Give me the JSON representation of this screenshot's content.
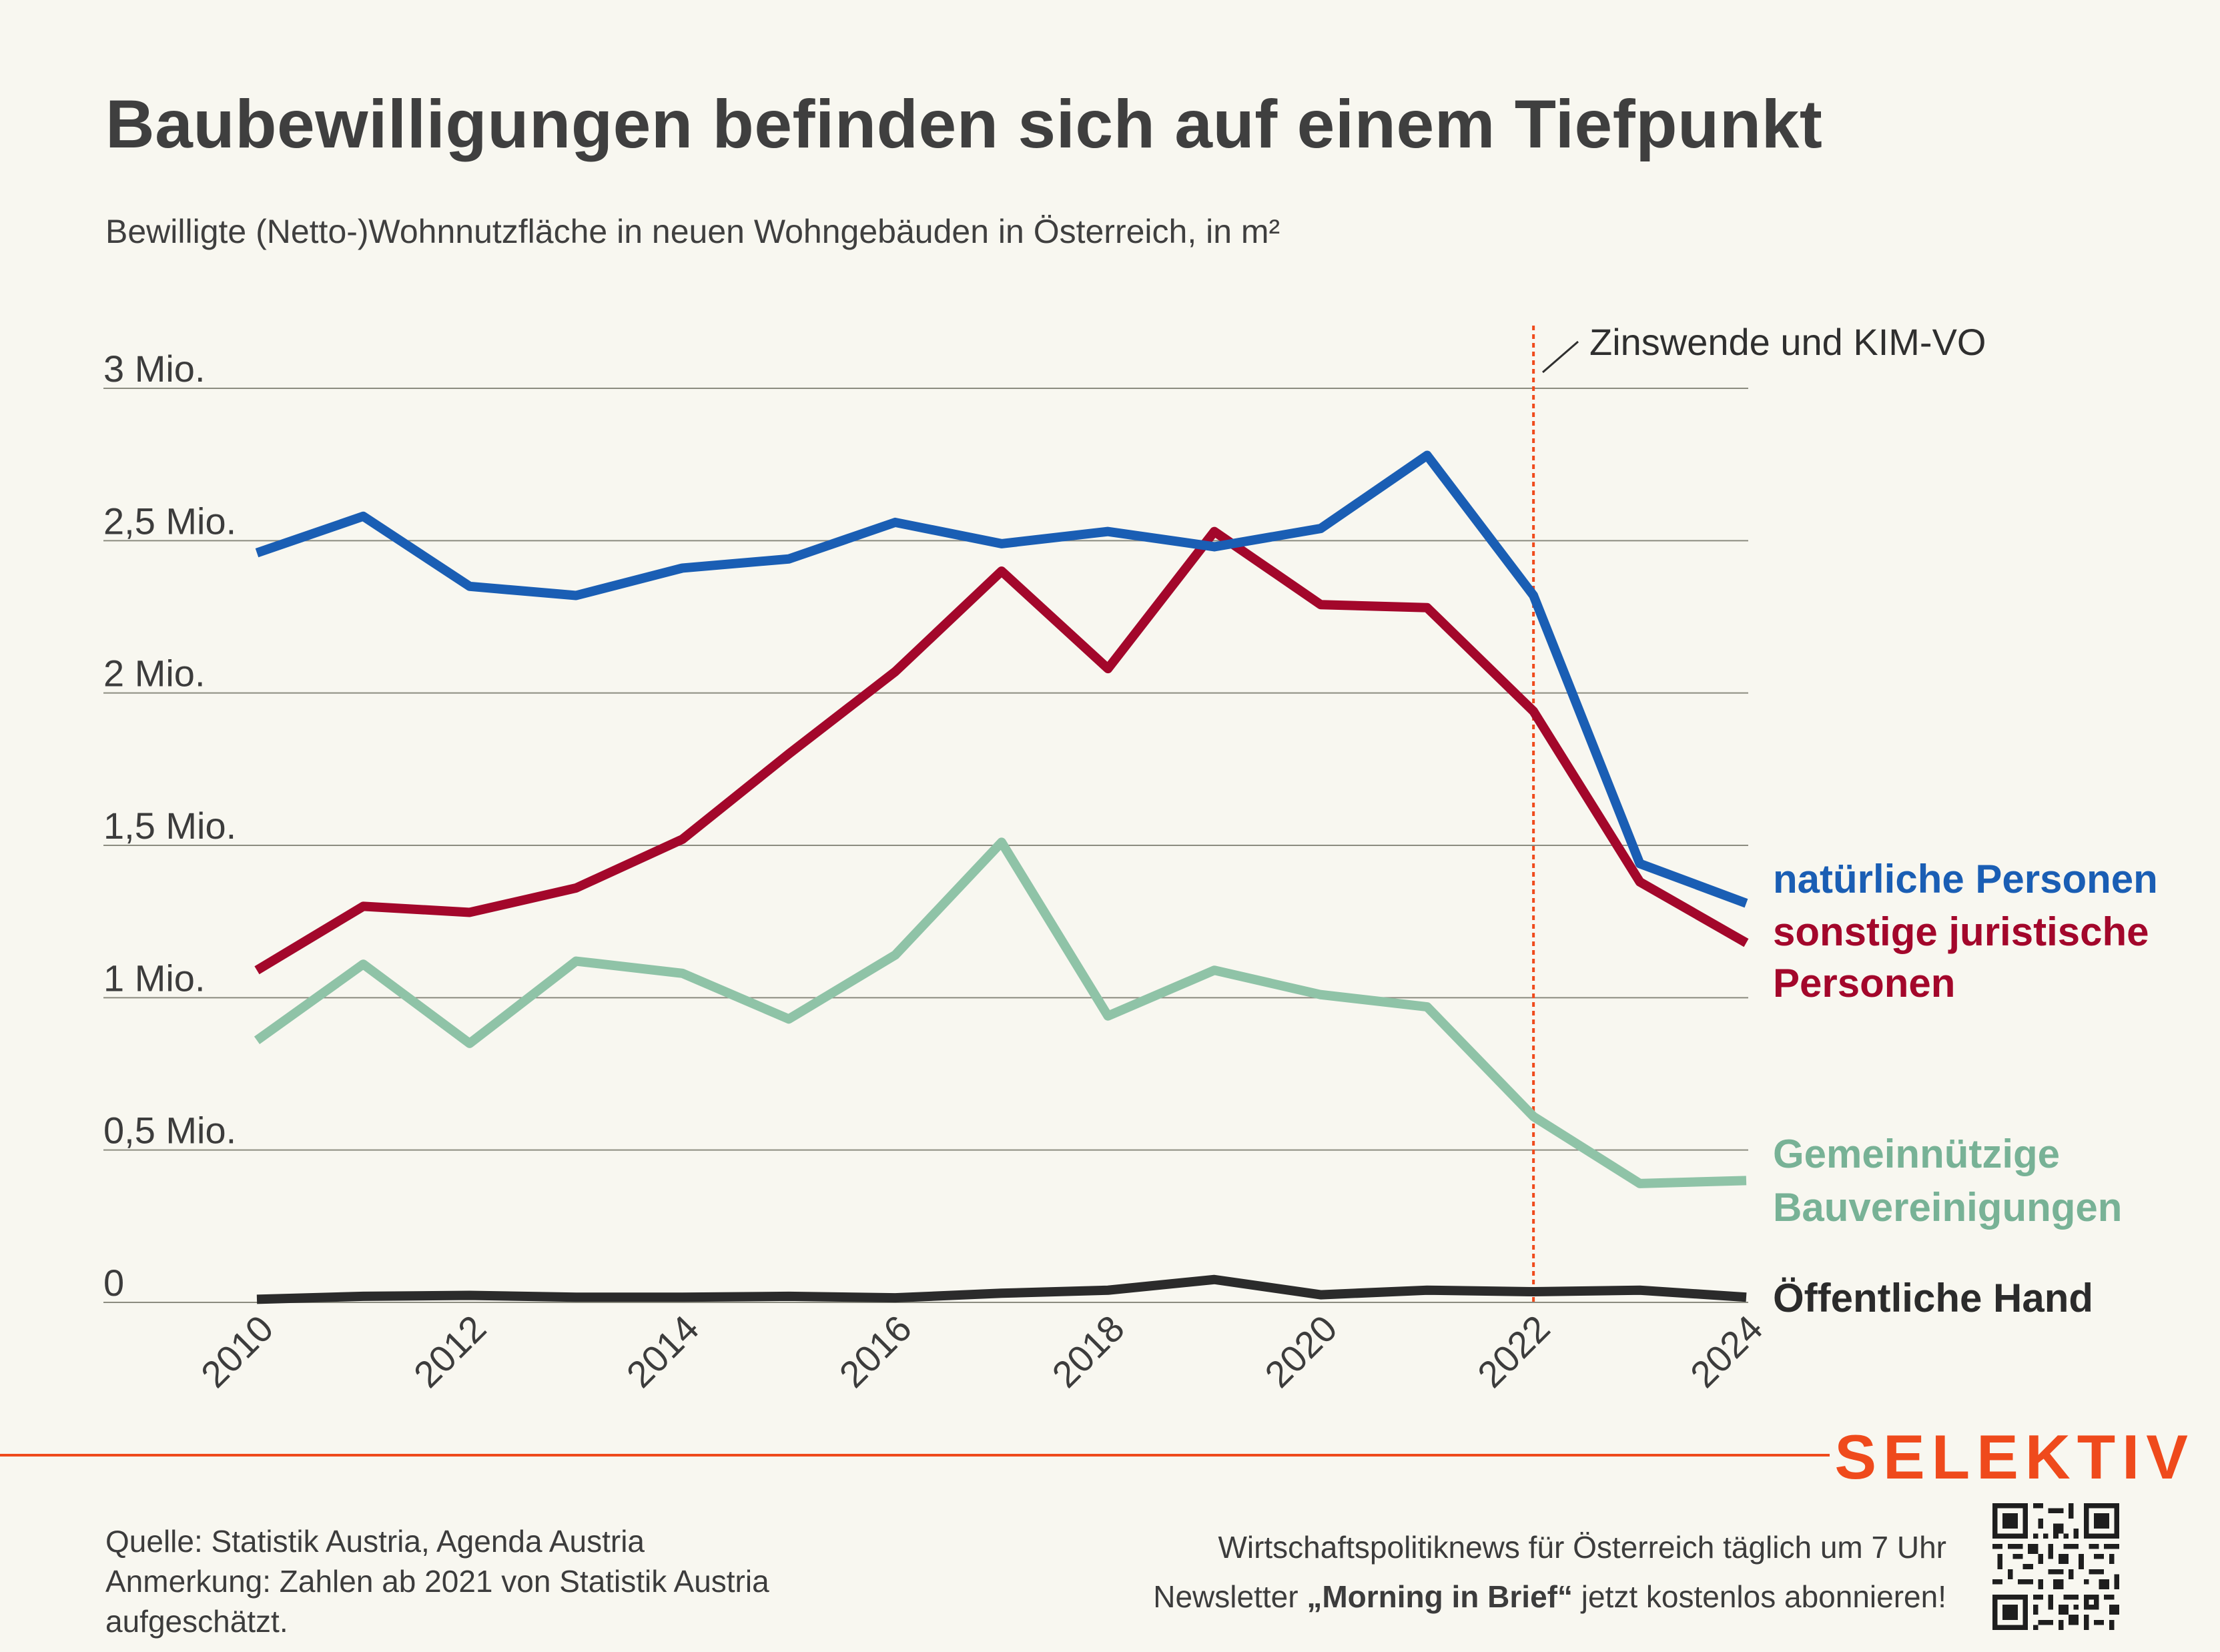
{
  "header": {
    "title": "Baubewilligungen befinden sich auf einem Tiefpunkt",
    "subtitle": "Bewilligte (Netto-)Wohnnutzfläche in neuen Wohngebäuden in Österreich, in m²"
  },
  "chart_data": {
    "type": "line",
    "title": "Baubewilligungen befinden sich auf einem Tiefpunkt",
    "subtitle": "Bewilligte (Netto-)Wohnnutzfläche in neuen Wohngebäuden in Österreich, in m²",
    "xlabel": "",
    "ylabel": "",
    "x": [
      2010,
      2011,
      2012,
      2013,
      2014,
      2015,
      2016,
      2017,
      2018,
      2019,
      2020,
      2021,
      2022,
      2023,
      2024
    ],
    "x_ticks": [
      "2010",
      "2012",
      "2014",
      "2016",
      "2018",
      "2020",
      "2022",
      "2024"
    ],
    "ylim": [
      0,
      3000000
    ],
    "y_ticks": [
      {
        "value": 0,
        "label": "0"
      },
      {
        "value": 500000,
        "label": "0,5 Mio."
      },
      {
        "value": 1000000,
        "label": "1 Mio."
      },
      {
        "value": 1500000,
        "label": "1,5 Mio."
      },
      {
        "value": 2000000,
        "label": "2 Mio."
      },
      {
        "value": 2500000,
        "label": "2,5 Mio."
      },
      {
        "value": 3000000,
        "label": "3 Mio."
      }
    ],
    "grid": true,
    "series": [
      {
        "name": "natürliche Personen",
        "label_lines": [
          "natürliche Personen"
        ],
        "color": "#1a5eb4",
        "values": [
          2460000,
          2580000,
          2350000,
          2320000,
          2410000,
          2440000,
          2560000,
          2490000,
          2530000,
          2480000,
          2540000,
          2780000,
          2320000,
          1440000,
          1310000
        ]
      },
      {
        "name": "sonstige juristische Personen",
        "label_lines": [
          "sonstige juristische",
          "Personen"
        ],
        "color": "#a3072b",
        "values": [
          1090000,
          1300000,
          1280000,
          1360000,
          1520000,
          1800000,
          2070000,
          2400000,
          2080000,
          2530000,
          2290000,
          2280000,
          1940000,
          1380000,
          1180000
        ]
      },
      {
        "name": "Gemeinnützige Bauvereinigungen",
        "label_lines": [
          "Gemeinnützige",
          "Bauvereinigungen"
        ],
        "color": "#8fc3a7",
        "label_color": "#78b296",
        "values": [
          860000,
          1110000,
          850000,
          1120000,
          1080000,
          930000,
          1140000,
          1510000,
          940000,
          1090000,
          1010000,
          970000,
          610000,
          390000,
          400000
        ]
      },
      {
        "name": "Öffentliche Hand",
        "label_lines": [
          "Öffentliche Hand"
        ],
        "color": "#2b2b2b",
        "values": [
          10000,
          20000,
          23000,
          17000,
          17000,
          20000,
          15000,
          30000,
          40000,
          75000,
          25000,
          40000,
          35000,
          40000,
          17000
        ]
      }
    ],
    "annotations": [
      {
        "x": 2022,
        "text": "Zinswende und KIM-VO",
        "color": "#ef4a1c"
      }
    ]
  },
  "footer": {
    "brand": "SELEKTIV",
    "source_line1": "Quelle: Statistik Austria, Agenda Austria",
    "source_line2": "Anmerkung: Zahlen ab 2021 von Statistik Austria aufgeschätzt.",
    "promo_line1": "Wirtschaftspolitiknews für Österreich täglich um 7 Uhr",
    "promo_line2_pre": "Newsletter ",
    "promo_line2_bold": "„Morning in Brief“",
    "promo_line2_post": " jetzt kostenlos abonnieren!",
    "qr_icon": "qr-code-icon"
  }
}
